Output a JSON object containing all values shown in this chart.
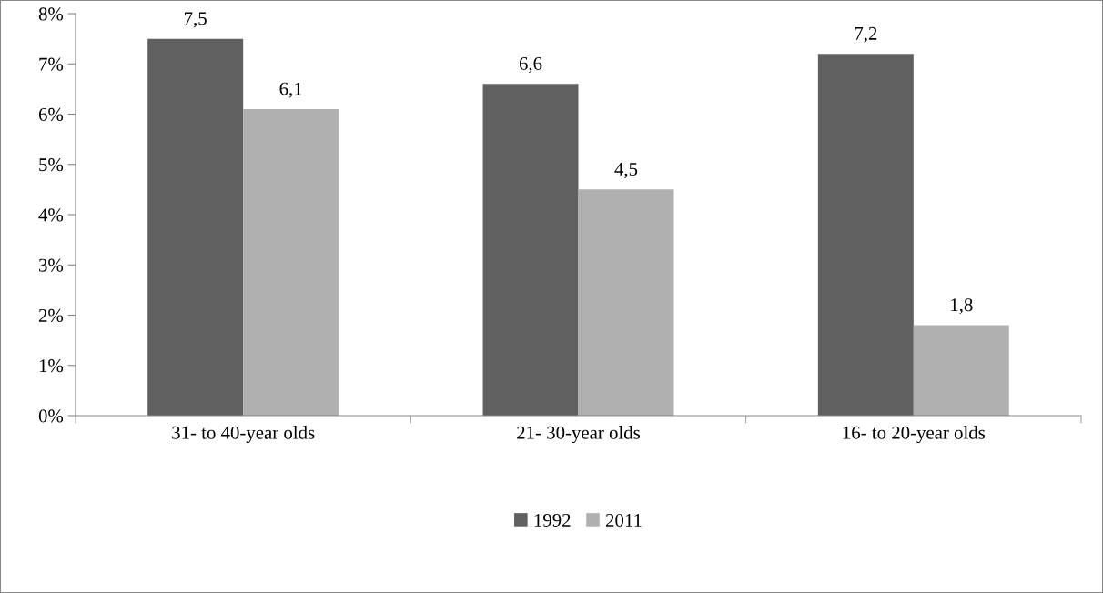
{
  "chart_data": {
    "type": "bar",
    "categories": [
      "31- to 40-year olds",
      "21- 30-year olds",
      "16- to 20-year olds"
    ],
    "series": [
      {
        "name": "1992",
        "color": "#606060",
        "values": [
          7.5,
          6.6,
          7.2
        ],
        "value_labels": [
          "7,5",
          "6,6",
          "7,2"
        ]
      },
      {
        "name": "2011",
        "color": "#b0b0b0",
        "values": [
          6.1,
          4.5,
          1.8
        ],
        "value_labels": [
          "6,1",
          "4,5",
          "1,8"
        ]
      }
    ],
    "ylim": [
      0,
      8
    ],
    "yticks": [
      {
        "value": 0,
        "label": "0%"
      },
      {
        "value": 1,
        "label": "1%"
      },
      {
        "value": 2,
        "label": "2%"
      },
      {
        "value": 3,
        "label": "3%"
      },
      {
        "value": 4,
        "label": "4%"
      },
      {
        "value": 5,
        "label": "5%"
      },
      {
        "value": 6,
        "label": "6%"
      },
      {
        "value": 7,
        "label": "7%"
      },
      {
        "value": 8,
        "label": "8%"
      }
    ],
    "grid": false,
    "legend": "bottom"
  }
}
